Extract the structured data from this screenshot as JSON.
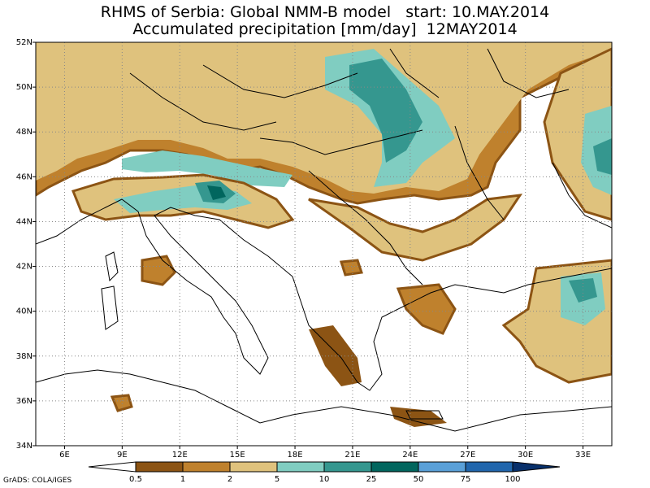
{
  "title_line1": "RHMS of Serbia: Global NMM-B model   start: 10.MAY.2014",
  "title_line2": "Accumulated precipitation [mm/day]  12MAY2014",
  "credit": "GrADS: COLA/IGES",
  "map": {
    "lon_range": [
      4.5,
      34.5
    ],
    "lat_range": [
      34,
      52
    ],
    "lon_ticks": [
      "6E",
      "9E",
      "12E",
      "15E",
      "18E",
      "21E",
      "24E",
      "27E",
      "30E",
      "33E"
    ],
    "lat_ticks": [
      "34N",
      "36N",
      "38N",
      "40N",
      "42N",
      "44N",
      "46N",
      "48N",
      "50N",
      "52N"
    ],
    "grid": "dotted"
  },
  "colorbar": {
    "labels": [
      "0.5",
      "1",
      "2",
      "5",
      "10",
      "25",
      "50",
      "75",
      "100"
    ],
    "colors": [
      "#8c5414",
      "#bf812d",
      "#dfc27d",
      "#80cdc1",
      "#35978f",
      "#01665e",
      "#5aa0d8",
      "#2166ac",
      "#08306b"
    ],
    "underflow_color": "#ffffff"
  }
}
